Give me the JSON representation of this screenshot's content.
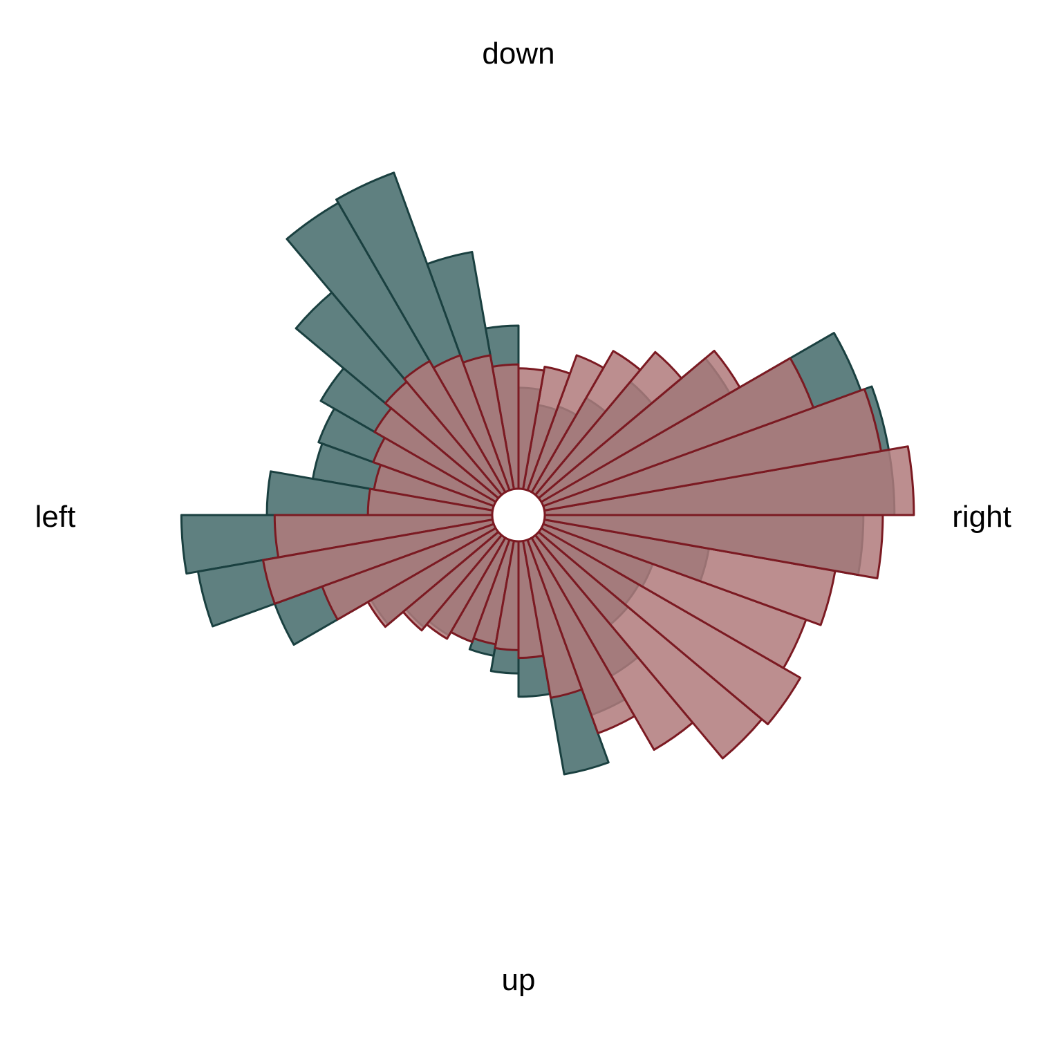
{
  "chart_data": {
    "type": "polar-histogram",
    "title": "",
    "direction_labels": {
      "top": "down",
      "bottom": "up",
      "left": "left",
      "right": "right"
    },
    "bin_count": 36,
    "bin_width_deg": 10,
    "angle_start_deg": 0,
    "angle_direction": "counter-clockwise from right",
    "series": [
      {
        "values": [
          0.9,
          0.9,
          0.87,
          0.56,
          0.38,
          0.28,
          0.23,
          0.22,
          0.26,
          0.42,
          0.62,
          0.87,
          0.86,
          0.68,
          0.52,
          0.48,
          0.47,
          0.58,
          0.8,
          0.77,
          0.6,
          0.37,
          0.31,
          0.29,
          0.28,
          0.3,
          0.34,
          0.4,
          0.61,
          0.48,
          0.41,
          0.3,
          0.29,
          0.3,
          0.43,
          0.82
        ],
        "fill": "#5f8080",
        "stroke": "#1a4040",
        "layer": "back"
      },
      {
        "values": [
          0.95,
          0.88,
          0.74,
          0.59,
          0.48,
          0.42,
          0.37,
          0.32,
          0.31,
          0.32,
          0.35,
          0.37,
          0.39,
          0.38,
          0.36,
          0.33,
          0.31,
          0.32,
          0.56,
          0.6,
          0.47,
          0.38,
          0.32,
          0.3,
          0.28,
          0.27,
          0.28,
          0.3,
          0.41,
          0.53,
          0.63,
          0.75,
          0.77,
          0.72,
          0.76,
          0.87
        ],
        "fill": "#b07a7b",
        "stroke": "#7b1a22",
        "layer": "front"
      }
    ],
    "background_rings": [
      0.32,
      0.52,
      0.72
    ],
    "legend": "none",
    "grid": false
  }
}
